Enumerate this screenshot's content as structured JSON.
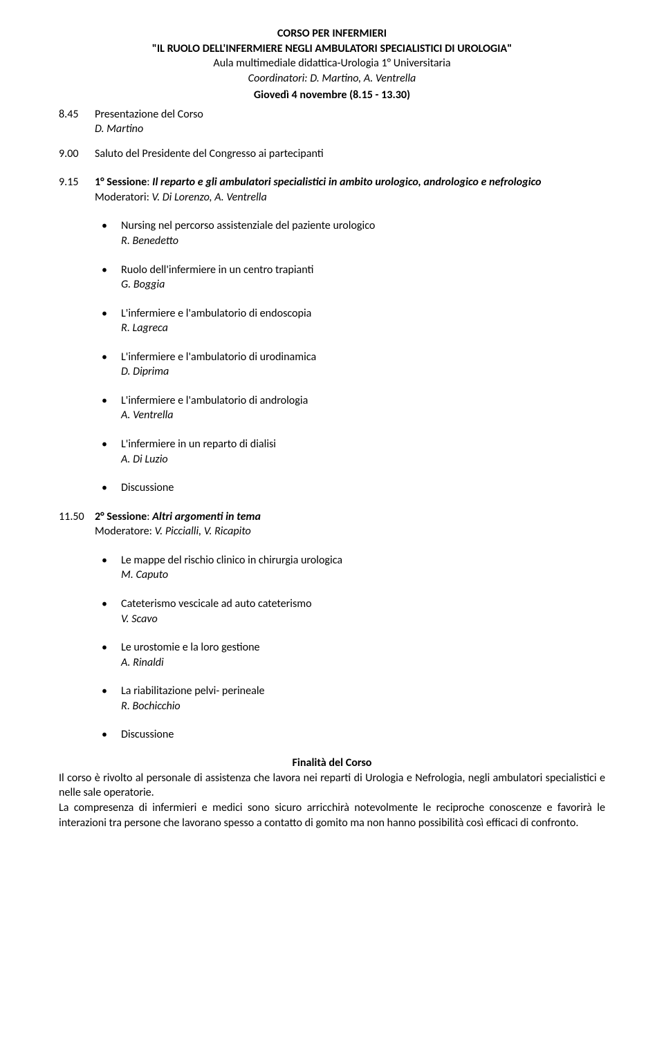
{
  "header": {
    "line1": "CORSO PER INFERMIERI",
    "line2": "\"IL RUOLO DELL'INFERMIERE NEGLI AMBULATORI SPECIALISTICI DI UROLOGIA\"",
    "line3": "Aula multimediale didattica-Urologia 1° Universitaria",
    "coord_label": "Coordinatori: ",
    "coord_names": "D. Martino, A. Ventrella",
    "date": "Giovedì 4 novembre (8.15 - 13.30)"
  },
  "intro": {
    "t845": "8.45",
    "t845_text": "Presentazione del Corso",
    "t845_name": "D. Martino",
    "t900": "9.00",
    "t900_text": "Saluto del Presidente del Congresso ai partecipanti"
  },
  "session1": {
    "time": "9.15",
    "label": "1° Sessione",
    "sep": ": ",
    "title": "Il reparto e gli ambulatori specialistici in ambito urologico, andrologico e nefrologico",
    "mod_label": "Moderatori: ",
    "mod_names": "V. Di Lorenzo, A. Ventrella",
    "bullets": [
      {
        "text": "Nursing nel percorso assistenziale del paziente urologico",
        "name": "R. Benedetto"
      },
      {
        "text": "Ruolo dell'infermiere in un centro trapianti",
        "name": "G. Boggia"
      },
      {
        "text": "L'infermiere e l'ambulatorio di endoscopia",
        "name": "R. Lagreca"
      },
      {
        "text": "L'infermiere e l'ambulatorio di urodinamica",
        "name": "D. Diprima"
      },
      {
        "text": "L'infermiere e l'ambulatorio di andrologia",
        "name": "A. Ventrella"
      },
      {
        "text": "L'infermiere in un reparto di dialisi",
        "name": "A. Di Luzio"
      },
      {
        "text": "Discussione",
        "name": ""
      }
    ]
  },
  "session2": {
    "time": "11.50",
    "label": "2° Sessione",
    "sep": ": ",
    "title": "Altri argomenti in tema",
    "mod_label": "Moderatore: ",
    "mod_names": "V. Piccialli, V. Ricapito",
    "bullets": [
      {
        "text": "Le mappe del rischio clinico in chirurgia urologica",
        "name": "M. Caputo"
      },
      {
        "text": "Cateterismo vescicale ad auto cateterismo",
        "name": "V. Scavo"
      },
      {
        "text": "Le urostomie e la loro gestione",
        "name": "A. Rinaldi"
      },
      {
        "text": "La riabilitazione pelvi- perineale",
        "name": "R. Bochicchio"
      },
      {
        "text": "Discussione",
        "name": ""
      }
    ]
  },
  "final": {
    "title": "Finalità del Corso",
    "p1": "Il corso è rivolto al personale di assistenza che lavora nei reparti di Urologia e Nefrologia, negli ambulatori specialistici e nelle sale operatorie.",
    "p2": "La compresenza di infermieri e medici sono sicuro arricchirà notevolmente le reciproche conoscenze e favorirà le interazioni tra persone che lavorano spesso a contatto di gomito ma non hanno possibilità così efficaci di confronto."
  }
}
